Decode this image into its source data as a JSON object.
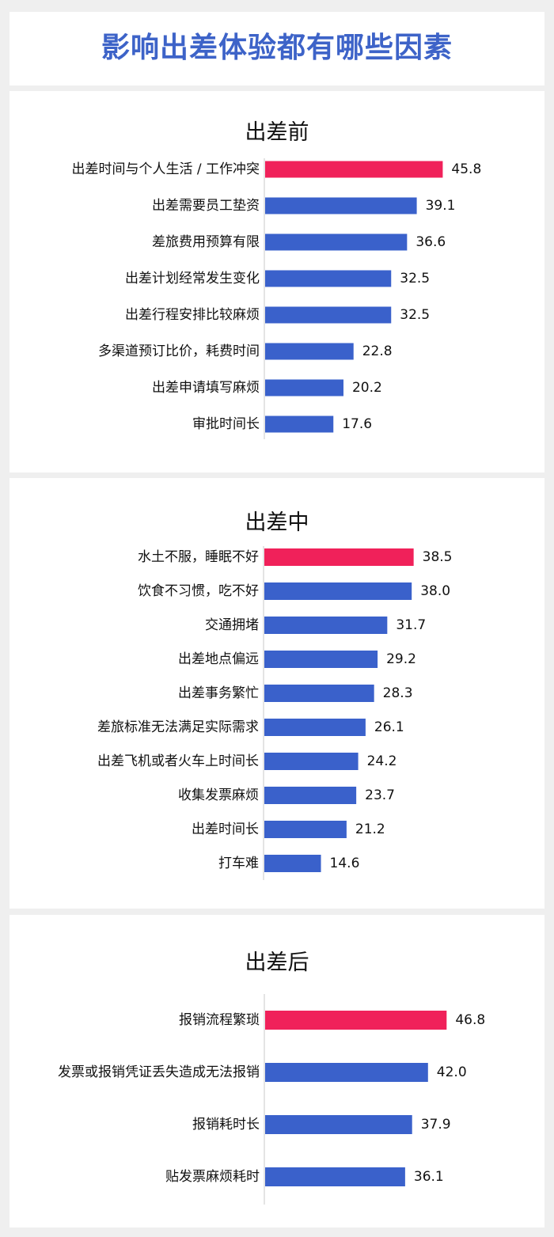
{
  "title": "影响出差体验都有哪些因素",
  "colors": {
    "highlight": "#f0215a",
    "bar": "#3a61cb",
    "title": "#3d63c8",
    "axis": "#c8c8c8"
  },
  "chart_data": [
    {
      "type": "bar",
      "orientation": "horizontal",
      "title": "出差前",
      "categories": [
        "出差时间与个人生活 / 工作冲突",
        "出差需要员工垫资",
        "差旅费用预算有限",
        "出差计划经常发生变化",
        "出差行程安排比较麻烦",
        "多渠道预订比价，耗费时间",
        "出差申请填写麻烦",
        "审批时间长"
      ],
      "values": [
        45.8,
        39.1,
        36.6,
        32.5,
        32.5,
        22.8,
        20.2,
        17.6
      ],
      "value_labels": [
        "45.8",
        "39.1",
        "36.6",
        "32.5",
        "32.5",
        "22.8",
        "20.2",
        "17.6"
      ],
      "highlight_index": 0
    },
    {
      "type": "bar",
      "orientation": "horizontal",
      "title": "出差中",
      "categories": [
        "水土不服，睡眠不好",
        "饮食不习惯，吃不好",
        "交通拥堵",
        "出差地点偏远",
        "出差事务繁忙",
        "差旅标准无法满足实际需求",
        "出差飞机或者火车上时间长",
        "收集发票麻烦",
        "出差时间长",
        "打车难"
      ],
      "values": [
        38.5,
        38.0,
        31.7,
        29.2,
        28.3,
        26.1,
        24.2,
        23.7,
        21.2,
        14.6
      ],
      "value_labels": [
        "38.5",
        "38.0",
        "31.7",
        "29.2",
        "28.3",
        "26.1",
        "24.2",
        "23.7",
        "21.2",
        "14.6"
      ],
      "highlight_index": 0
    },
    {
      "type": "bar",
      "orientation": "horizontal",
      "title": "出差后",
      "categories": [
        "报销流程繁琐",
        "发票或报销凭证丢失造成无法报销",
        "报销耗时长",
        "贴发票麻烦耗时"
      ],
      "values": [
        46.8,
        42.0,
        37.9,
        36.1
      ],
      "value_labels": [
        "46.8",
        "42.0",
        "37.9",
        "36.1"
      ],
      "highlight_index": 0
    }
  ]
}
